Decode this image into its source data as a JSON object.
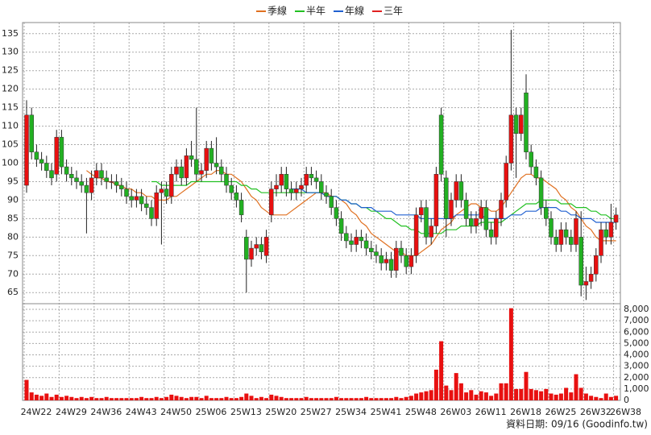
{
  "chart_data": {
    "type": "candlestick",
    "legend": "top",
    "grid": true,
    "up_color": "#e81010",
    "down_color": "#22b022",
    "categories": [
      "24W22",
      null,
      null,
      null,
      null,
      null,
      null,
      "24W29",
      null,
      null,
      null,
      null,
      null,
      null,
      "24W36",
      null,
      null,
      null,
      null,
      null,
      null,
      "24W43",
      null,
      null,
      null,
      null,
      null,
      null,
      "24W50",
      null,
      null,
      null,
      null,
      null,
      null,
      "25W06",
      null,
      null,
      null,
      null,
      null,
      null,
      "25W13",
      null,
      null,
      null,
      null,
      null,
      null,
      "25W20",
      null,
      null,
      null,
      null,
      null,
      null,
      "25W27",
      null,
      null,
      null,
      null,
      null,
      null,
      "25W34",
      null,
      null,
      null,
      null,
      null,
      null,
      "25W41",
      null,
      null,
      null,
      null,
      null,
      null,
      "25W48",
      null,
      null,
      null,
      null,
      null,
      null,
      "26W03",
      null,
      null,
      null,
      null,
      null,
      null,
      "26W11",
      null,
      null,
      null,
      null,
      null,
      null,
      "26W18",
      null,
      null,
      null,
      null,
      null,
      null,
      "26W25",
      null,
      null,
      null,
      null,
      null,
      null,
      "26W32",
      null,
      null,
      null,
      null,
      null,
      "26W38"
    ],
    "open": [
      94,
      113,
      103,
      101,
      100,
      98,
      97,
      107,
      99,
      97,
      96,
      95,
      94,
      92,
      96,
      98,
      96,
      95,
      95,
      94,
      93,
      91,
      90,
      91,
      89,
      88,
      85,
      92,
      93,
      91,
      97,
      99,
      96,
      102,
      101,
      97,
      98,
      104,
      100,
      99,
      97,
      94,
      92,
      90,
      80,
      74,
      77,
      78,
      75,
      86,
      93,
      94,
      97,
      93,
      92,
      93,
      94,
      97,
      96,
      95,
      92,
      91,
      88,
      85,
      81,
      79,
      78,
      80,
      79,
      77,
      76,
      75,
      73,
      74,
      71,
      77,
      75,
      72,
      75,
      86,
      88,
      80,
      83,
      113,
      96,
      85,
      90,
      95,
      90,
      85,
      83,
      85,
      88,
      82,
      80,
      85,
      90,
      100,
      113,
      108,
      119,
      103,
      99,
      96,
      88,
      85,
      80,
      78,
      82,
      80,
      78,
      80,
      67,
      68,
      70,
      75,
      82,
      80,
      84
    ],
    "high": [
      117,
      115,
      105,
      103,
      102,
      100,
      109,
      109,
      101,
      99,
      98,
      97,
      96,
      98,
      100,
      100,
      98,
      97,
      97,
      96,
      95,
      93,
      93,
      93,
      91,
      90,
      94,
      95,
      95,
      99,
      101,
      101,
      104,
      106,
      115,
      100,
      106,
      106,
      107,
      101,
      99,
      96,
      94,
      92,
      82,
      79,
      80,
      80,
      82,
      95,
      97,
      99,
      99,
      95,
      95,
      96,
      99,
      99,
      98,
      97,
      94,
      93,
      90,
      87,
      83,
      81,
      82,
      82,
      81,
      79,
      78,
      77,
      76,
      76,
      79,
      79,
      77,
      77,
      88,
      90,
      90,
      85,
      99,
      115,
      98,
      92,
      97,
      97,
      92,
      87,
      87,
      90,
      90,
      84,
      87,
      92,
      102,
      136,
      115,
      115,
      124,
      105,
      101,
      98,
      90,
      87,
      82,
      84,
      84,
      82,
      87,
      87,
      72,
      72,
      77,
      84,
      84,
      89,
      88
    ],
    "low": [
      92,
      101,
      99,
      98,
      96,
      94,
      95,
      97,
      95,
      94,
      93,
      92,
      81,
      90,
      94,
      94,
      93,
      93,
      92,
      91,
      89,
      88,
      88,
      87,
      86,
      83,
      83,
      78,
      89,
      89,
      95,
      94,
      94,
      99,
      95,
      95,
      96,
      98,
      97,
      95,
      92,
      90,
      88,
      84,
      65,
      72,
      75,
      74,
      73,
      84,
      91,
      92,
      91,
      90,
      90,
      91,
      92,
      94,
      93,
      90,
      89,
      86,
      83,
      79,
      77,
      76,
      76,
      77,
      75,
      74,
      73,
      71,
      71,
      69,
      69,
      73,
      70,
      70,
      73,
      84,
      78,
      78,
      81,
      95,
      80,
      83,
      88,
      88,
      83,
      81,
      81,
      83,
      80,
      78,
      78,
      83,
      88,
      98,
      96,
      106,
      101,
      97,
      94,
      86,
      83,
      78,
      76,
      76,
      78,
      76,
      76,
      64,
      63,
      66,
      68,
      73,
      78,
      78,
      82
    ],
    "close": [
      113,
      103,
      101,
      100,
      98,
      96,
      107,
      99,
      97,
      96,
      95,
      94,
      92,
      96,
      98,
      96,
      95,
      95,
      94,
      93,
      91,
      90,
      91,
      89,
      88,
      85,
      92,
      93,
      91,
      97,
      99,
      96,
      102,
      101,
      97,
      98,
      104,
      100,
      99,
      97,
      94,
      92,
      90,
      86,
      74,
      77,
      78,
      76,
      80,
      93,
      94,
      97,
      93,
      92,
      93,
      94,
      97,
      96,
      95,
      92,
      91,
      88,
      85,
      81,
      79,
      78,
      80,
      79,
      77,
      76,
      75,
      73,
      74,
      71,
      77,
      75,
      72,
      75,
      86,
      88,
      80,
      83,
      97,
      97,
      85,
      90,
      95,
      90,
      85,
      83,
      85,
      88,
      82,
      80,
      85,
      90,
      100,
      113,
      108,
      113,
      103,
      99,
      96,
      88,
      85,
      80,
      78,
      82,
      80,
      78,
      85,
      67,
      68,
      70,
      75,
      82,
      80,
      84,
      86
    ],
    "ylim": [
      62,
      138
    ],
    "yticks": [
      65,
      70,
      75,
      80,
      85,
      90,
      95,
      100,
      105,
      110,
      115,
      120,
      125,
      130,
      135
    ],
    "series": [
      {
        "name": "季線",
        "color": "#e07020",
        "values": [
          null,
          null,
          null,
          null,
          null,
          null,
          null,
          null,
          null,
          null,
          null,
          null,
          98,
          97,
          96,
          96,
          95,
          95,
          94,
          94,
          93,
          93,
          92,
          92,
          91,
          91,
          90,
          90,
          90,
          91,
          91,
          92,
          93,
          94,
          95,
          96,
          97,
          97,
          98,
          98,
          97,
          97,
          96,
          95,
          93,
          91,
          90,
          88,
          87,
          86,
          86,
          86,
          86,
          87,
          88,
          89,
          90,
          91,
          92,
          92,
          92,
          91,
          91,
          90,
          89,
          87,
          86,
          84,
          83,
          81,
          80,
          79,
          78,
          77,
          76,
          76,
          75,
          75,
          75,
          76,
          77,
          78,
          80,
          82,
          83,
          84,
          86,
          87,
          88,
          89,
          89,
          88,
          88,
          87,
          87,
          88,
          90,
          92,
          94,
          96,
          97,
          97,
          96,
          96,
          95,
          94,
          93,
          91,
          90,
          88,
          87,
          85,
          83,
          82,
          80,
          79,
          79,
          79,
          79
        ]
      },
      {
        "name": "半年",
        "color": "#22c022",
        "values": [
          null,
          null,
          null,
          null,
          null,
          null,
          null,
          null,
          null,
          null,
          null,
          null,
          null,
          null,
          null,
          null,
          null,
          null,
          null,
          null,
          null,
          null,
          null,
          null,
          null,
          95,
          95,
          94,
          94,
          94,
          94,
          94,
          94,
          95,
          95,
          95,
          95,
          95,
          95,
          95,
          95,
          95,
          95,
          94,
          94,
          93,
          93,
          92,
          92,
          92,
          92,
          92,
          92,
          92,
          92,
          92,
          92,
          92,
          92,
          92,
          91,
          91,
          91,
          90,
          90,
          89,
          89,
          88,
          88,
          87,
          87,
          86,
          85,
          85,
          84,
          83,
          83,
          82,
          82,
          81,
          81,
          81,
          81,
          81,
          82,
          82,
          82,
          83,
          83,
          83,
          83,
          84,
          84,
          84,
          84,
          84,
          85,
          86,
          87,
          88,
          89,
          89,
          89,
          90,
          90,
          90,
          90,
          89,
          89,
          89,
          88,
          88,
          88,
          87,
          87,
          86,
          86,
          85,
          85
        ]
      },
      {
        "name": "年線",
        "color": "#2060d0",
        "values": [
          null,
          null,
          null,
          null,
          null,
          null,
          null,
          null,
          null,
          null,
          null,
          null,
          null,
          null,
          null,
          null,
          null,
          null,
          null,
          null,
          null,
          null,
          null,
          null,
          null,
          null,
          null,
          null,
          null,
          null,
          null,
          null,
          null,
          null,
          null,
          null,
          null,
          null,
          null,
          null,
          null,
          null,
          null,
          null,
          null,
          null,
          null,
          null,
          null,
          null,
          null,
          null,
          null,
          93,
          93,
          93,
          92,
          92,
          92,
          92,
          91,
          91,
          91,
          90,
          90,
          89,
          89,
          88,
          88,
          88,
          87,
          87,
          87,
          87,
          86,
          86,
          86,
          86,
          86,
          85,
          85,
          85,
          85,
          85,
          85,
          85,
          86,
          86,
          86,
          86,
          86,
          86,
          85,
          85,
          85,
          85,
          85,
          86,
          86,
          86,
          87,
          87,
          87,
          88,
          88,
          88,
          88,
          87,
          87,
          86,
          86,
          85,
          85,
          85,
          84,
          84,
          84,
          84,
          84
        ]
      },
      {
        "name": "三年",
        "color": "#e02020",
        "values": [
          null,
          null,
          null,
          null,
          null,
          null,
          null,
          null,
          null,
          null,
          null,
          null,
          null,
          null,
          null,
          null,
          null,
          null,
          null,
          null,
          null,
          null,
          null,
          null,
          null,
          null,
          null,
          null,
          null,
          null,
          null,
          null,
          null,
          null,
          null,
          null,
          null,
          null,
          null,
          null,
          null,
          null,
          null,
          null,
          null,
          null,
          null,
          null,
          null,
          null,
          null,
          null,
          null,
          null,
          null,
          null,
          null,
          null,
          null,
          null,
          null,
          null,
          null,
          null,
          null,
          null,
          null,
          null,
          null,
          null,
          null,
          null,
          null,
          null,
          null,
          null,
          null,
          null,
          null,
          null,
          null,
          null,
          null,
          null,
          null,
          null,
          null,
          null,
          null,
          null,
          null,
          null,
          null,
          null,
          null,
          null,
          null,
          null,
          null,
          null,
          null,
          null,
          null,
          null,
          null,
          null,
          null,
          null,
          null,
          null,
          null,
          null,
          null,
          null,
          null,
          null,
          null,
          null,
          null
        ]
      }
    ],
    "volume": {
      "color": "#e81010",
      "values": [
        1800,
        700,
        500,
        400,
        600,
        300,
        500,
        300,
        400,
        300,
        200,
        300,
        200,
        300,
        200,
        200,
        300,
        200,
        200,
        200,
        200,
        200,
        200,
        300,
        200,
        200,
        300,
        200,
        300,
        500,
        400,
        300,
        200,
        300,
        300,
        200,
        400,
        200,
        200,
        200,
        300,
        200,
        200,
        300,
        600,
        400,
        200,
        300,
        200,
        500,
        400,
        300,
        200,
        200,
        200,
        200,
        300,
        200,
        200,
        200,
        200,
        200,
        300,
        200,
        200,
        200,
        200,
        200,
        300,
        200,
        200,
        200,
        200,
        200,
        300,
        200,
        300,
        400,
        600,
        700,
        800,
        900,
        2700,
        5200,
        1300,
        900,
        2400,
        1500,
        700,
        900,
        500,
        800,
        700,
        400,
        600,
        1500,
        1500,
        8100,
        1000,
        1000,
        2500,
        1000,
        900,
        800,
        1000,
        600,
        500,
        600,
        1100,
        700,
        2300,
        1100,
        600,
        400,
        300,
        200,
        600,
        300,
        400
      ],
      "ylim": [
        0,
        8500
      ],
      "yticks": [
        0,
        {
          "value": 1000,
          "label": "1,000"
        },
        {
          "value": 2000,
          "label": "2,000"
        },
        {
          "value": 3000,
          "label": "3,000"
        },
        {
          "value": 4000,
          "label": "4,000"
        },
        {
          "value": 5000,
          "label": "5,000"
        },
        {
          "value": 6000,
          "label": "6,000"
        },
        {
          "value": 7000,
          "label": "7,000"
        },
        {
          "value": 8000,
          "label": "8,000"
        }
      ]
    },
    "footnote": "資料日期: 09/16  (Goodinfo.tw)"
  }
}
